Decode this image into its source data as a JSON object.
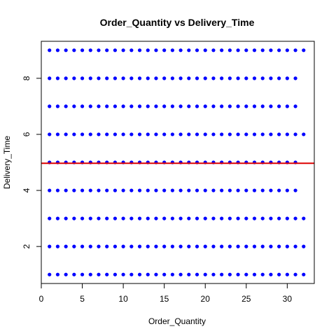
{
  "chart_data": {
    "type": "scatter",
    "title": "Order_Quantity vs Delivery_Time",
    "xlabel": "Order_Quantity",
    "ylabel": "Delivery_Time",
    "xlim": [
      0,
      33.3
    ],
    "ylim": [
      0.68,
      9.32
    ],
    "x_ticks": [
      0,
      5,
      10,
      15,
      20,
      25,
      30
    ],
    "y_ticks": [
      2,
      4,
      6,
      8
    ],
    "point_color": "#0000ff",
    "reference_line": {
      "orientation": "horizontal",
      "y": 4.97,
      "color": "#dd0000"
    },
    "rows": [
      {
        "y": 1,
        "x_min": 1,
        "x_max": 32
      },
      {
        "y": 2,
        "x_min": 1,
        "x_max": 32
      },
      {
        "y": 3,
        "x_min": 1,
        "x_max": 32
      },
      {
        "y": 4,
        "x_min": 1,
        "x_max": 31
      },
      {
        "y": 5,
        "x_min": 1,
        "x_max": 31
      },
      {
        "y": 6,
        "x_min": 1,
        "x_max": 32
      },
      {
        "y": 7,
        "x_min": 1,
        "x_max": 31
      },
      {
        "y": 8,
        "x_min": 1,
        "x_max": 31
      },
      {
        "y": 9,
        "x_min": 1,
        "x_max": 32
      }
    ],
    "grid": false,
    "legend": "none"
  }
}
